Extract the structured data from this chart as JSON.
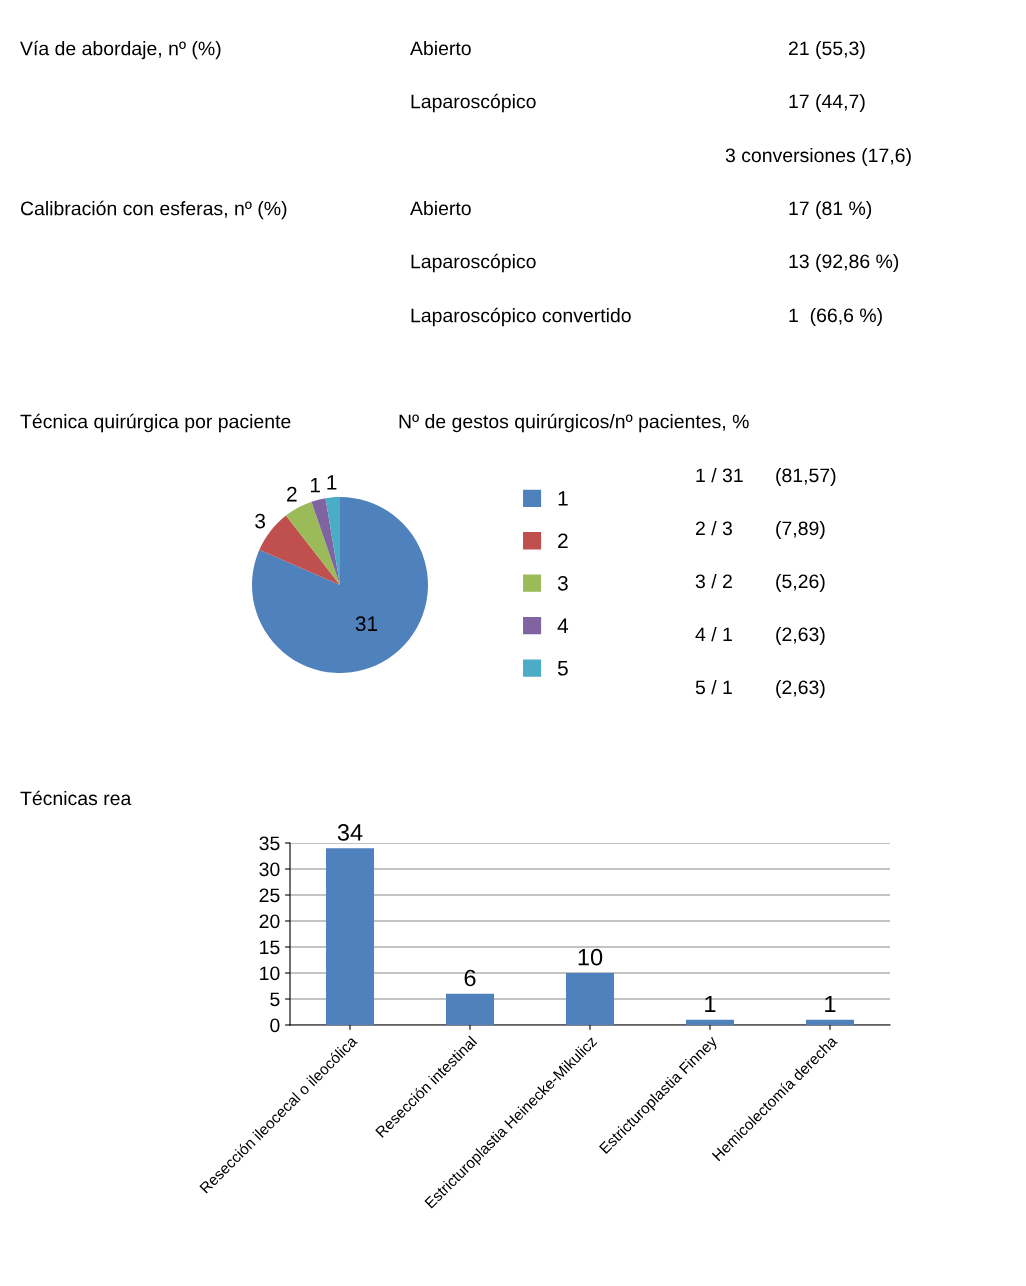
{
  "chart_data": [
    {
      "type": "other",
      "annotations": [
        "Vía de abordaje, nº (%)",
        "Abierto",
        "21 (55,3)",
        "Laparoscópico",
        "17 (44,7)",
        "3 conversiones (17,6)",
        "Calibración con esferas, nº (%)",
        "Abierto",
        "17 (81 %)",
        "Laparoscópico",
        "13 (92,86 %)",
        "Laparoscópico convertido",
        "1  (66,6 %)"
      ]
    },
    {
      "type": "pie",
      "title": "Técnica quirúrgica por paciente",
      "subtitle": "Nº de gestos quirúrgicos/nº pacientes, %",
      "categories": [
        "1",
        "2",
        "3",
        "4",
        "5"
      ],
      "values": [
        31,
        3,
        2,
        1,
        1
      ],
      "colors": [
        "#4f81bd",
        "#c0504d",
        "#9bbb59",
        "#8064a2",
        "#4bacc6"
      ],
      "data_labels": true,
      "legend": "right",
      "annotations": [
        "1 / 31",
        "(81,57)",
        "2 / 3",
        "(7,89)",
        "3 / 2",
        "(5,26)",
        "4 / 1",
        "(2,63)",
        "5 / 1",
        "(2,63)"
      ]
    },
    {
      "type": "bar",
      "title": "Técnicas rea",
      "categories": [
        "Resección ileocecal o ileocólica",
        "Resección intestinal",
        "Estricturoplastia Heinecke-Mikulicz",
        "Estricturoplastia Finney",
        "Hemicolectomía derecha"
      ],
      "values": [
        34,
        6,
        10,
        1,
        1
      ],
      "color": "#4f81bd",
      "ylim": [
        0,
        35
      ],
      "yticks": [
        0,
        5,
        10,
        15,
        20,
        25,
        30,
        35
      ],
      "grid": "y",
      "data_labels": true
    }
  ]
}
